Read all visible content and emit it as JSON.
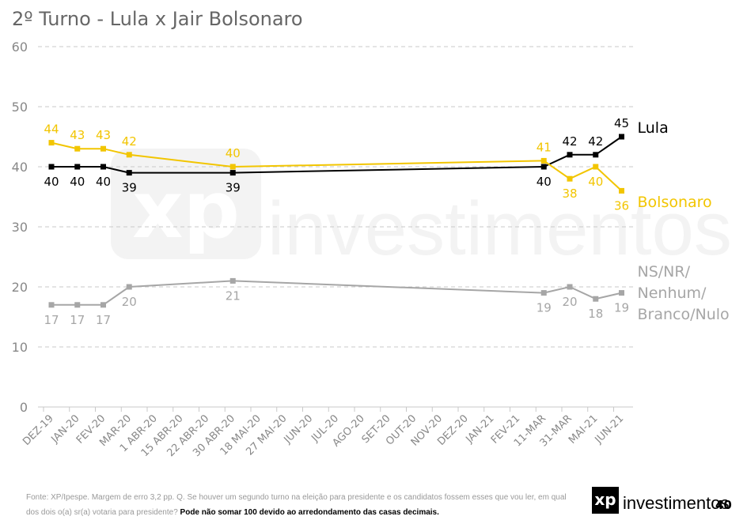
{
  "chart_data": {
    "type": "line",
    "title": "2º Turno - Lula x Jair Bolsonaro",
    "categories": [
      "DEZ-19",
      "JAN-20",
      "FEV-20",
      "MAR-20",
      "1 ABR-20",
      "15 ABR-20",
      "22 ABR-20",
      "30 ABR-20",
      "18 MAI-20",
      "27 MAI-20",
      "JUN-20",
      "JUL-20",
      "AGO-20",
      "SET-20",
      "OUT-20",
      "NOV-20",
      "DEZ-20",
      "JAN-21",
      "FEV-21",
      "11-MAR",
      "31-MAR",
      "MAI-21",
      "JUN-21"
    ],
    "series": [
      {
        "name": "Lula",
        "color": "#000000",
        "values": [
          40,
          40,
          40,
          39,
          null,
          null,
          null,
          39,
          null,
          null,
          null,
          null,
          null,
          null,
          null,
          null,
          null,
          null,
          null,
          40,
          42,
          42,
          45
        ]
      },
      {
        "name": "Bolsonaro",
        "color": "#f2c500",
        "values": [
          44,
          43,
          43,
          42,
          null,
          null,
          null,
          40,
          null,
          null,
          null,
          null,
          null,
          null,
          null,
          null,
          null,
          null,
          null,
          41,
          38,
          40,
          36
        ]
      },
      {
        "name": "NS/NR/ Nenhum/ Branco/Nulo",
        "color": "#a6a6a6",
        "values": [
          17,
          17,
          17,
          20,
          null,
          null,
          null,
          21,
          null,
          null,
          null,
          null,
          null,
          null,
          null,
          null,
          null,
          null,
          null,
          19,
          20,
          18,
          19
        ]
      }
    ],
    "ylim": [
      0,
      60
    ],
    "yticks": [
      0,
      10,
      20,
      30,
      40,
      50,
      60
    ],
    "grid": true,
    "span_gaps": true
  },
  "footer": {
    "source": "Fonte: XP/Ipespe. Margem de erro 3,2 pp. Q. Se houver um segundo turno na eleição para presidente e os candidatos fossem esses que vou ler, em qual dos dois o(a) sr(a) votaria para presidente?",
    "note": "Pode não somar 100 devido ao arredondamento das casas decimais.",
    "page": "40"
  },
  "logo": {
    "mark": "xp",
    "text": "investimentos"
  }
}
